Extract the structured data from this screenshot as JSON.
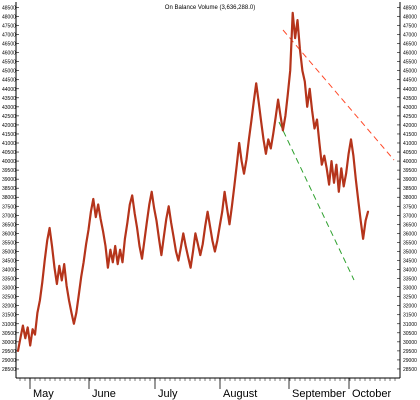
{
  "chart_data": {
    "type": "line",
    "title": "On Balance Volume (3,636,288.0)",
    "ylim": [
      28000,
      48800
    ],
    "y_ticks": [
      28500,
      29000,
      29500,
      30000,
      30500,
      31000,
      31500,
      32000,
      32500,
      33000,
      33500,
      34000,
      34500,
      35000,
      35500,
      36000,
      36500,
      37000,
      37500,
      38000,
      38500,
      39000,
      39500,
      40000,
      40500,
      41000,
      41500,
      42000,
      42500,
      43000,
      43500,
      44000,
      44500,
      45000,
      45500,
      46000,
      46500,
      47000,
      47500,
      48000,
      48500
    ],
    "x_labels": [
      "May",
      "June",
      "July",
      "August",
      "September",
      "October"
    ],
    "series": [
      {
        "values": [
          29500,
          30200,
          30900,
          30200,
          30800,
          29800,
          30700,
          30400,
          31600,
          32300,
          33300,
          34500,
          35600,
          36300,
          35300,
          34100,
          33200,
          34200,
          33400,
          34300,
          33100,
          32300,
          31600,
          31000,
          31600,
          32600,
          33600,
          34400,
          35400,
          36200,
          37200,
          37900,
          36900,
          37600,
          36800,
          36100,
          35300,
          34100,
          35100,
          34400,
          35300,
          34300,
          35100,
          34400,
          35700,
          36600,
          37600,
          38100,
          37100,
          36300,
          35300,
          34600,
          35600,
          36600,
          37600,
          38300,
          37400,
          36700,
          35700,
          34800,
          35800,
          36800,
          37500,
          36600,
          35800,
          35000,
          34500,
          35200,
          36000,
          35300,
          34700,
          34100,
          35000,
          36000,
          35400,
          34800,
          35400,
          36400,
          37200,
          36400,
          35600,
          35000,
          35600,
          36400,
          37200,
          38300,
          37400,
          36500,
          37500,
          38600,
          39800,
          41000,
          40000,
          39300,
          40100,
          41200,
          42200,
          43300,
          44300,
          43300,
          42200,
          41200,
          40400,
          41200,
          40700,
          41500,
          42400,
          43400,
          42500,
          41700,
          42500,
          43700,
          45000,
          48200,
          46800,
          47800,
          46200,
          45000,
          44400,
          43000,
          44000,
          42800,
          41800,
          42300,
          41000,
          39800,
          40300,
          39600,
          38700,
          40000,
          38800,
          39800,
          38300,
          39600,
          38600,
          39300,
          40400,
          41200,
          40300,
          39000,
          37800,
          36700,
          35700,
          36700,
          37200
        ]
      }
    ]
  }
}
